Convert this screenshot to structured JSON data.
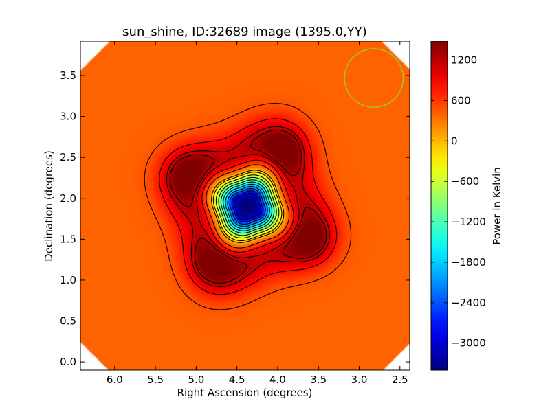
{
  "chart_data": {
    "type": "heatmap",
    "title": "sun_shine, ID:32689 image (1395.0,YY)",
    "xlabel": "Right Ascension (degrees)",
    "ylabel": "Declination (degrees)",
    "xlim": [
      6.42,
      2.38
    ],
    "ylim": [
      -0.1,
      3.92
    ],
    "xticks": [
      6.0,
      5.5,
      5.0,
      4.5,
      4.0,
      3.5,
      3.0,
      2.5
    ],
    "xtick_labels": [
      "6.0",
      "5.5",
      "5.0",
      "4.5",
      "4.0",
      "3.5",
      "3.0",
      "2.5"
    ],
    "yticks": [
      0.0,
      0.5,
      1.0,
      1.5,
      2.0,
      2.5,
      3.0,
      3.5
    ],
    "ytick_labels": [
      "0.0",
      "0.5",
      "1.0",
      "1.5",
      "2.0",
      "2.5",
      "3.0",
      "3.5"
    ],
    "grid": false,
    "colormap": "jet",
    "colorbar": {
      "label": "Power in Kelvin",
      "range": [
        -3400,
        1480
      ],
      "ticks": [
        1200,
        600,
        0,
        -600,
        -1200,
        -1800,
        -2400,
        -3000
      ],
      "tick_labels": [
        "1200",
        "600",
        "0",
        "−600",
        "−1200",
        "−1800",
        "−2400",
        "−3000"
      ]
    },
    "field": {
      "center_ra": 4.37,
      "center_dec": 1.9,
      "background_value": 400,
      "peak_positive_value": 1420,
      "min_value": -3300,
      "positive_lobes": [
        {
          "ra": 5.1,
          "dec": 2.28
        },
        {
          "ra": 3.93,
          "dec": 2.6
        },
        {
          "ra": 3.6,
          "dec": 1.5
        },
        {
          "ra": 4.77,
          "dec": 1.2
        }
      ]
    },
    "contours": {
      "positive_levels": [
        480,
        800,
        1100,
        1250
      ],
      "negative_levels_dashed": [
        -200,
        -500,
        -800,
        -1100,
        -1400,
        -1700,
        -2000,
        -2300,
        -2600,
        -2900
      ],
      "zero_level": 0
    },
    "beam_marker": {
      "ra": 2.82,
      "dec": 3.47,
      "radius_deg": 0.36,
      "color": "#9fc63c"
    }
  }
}
